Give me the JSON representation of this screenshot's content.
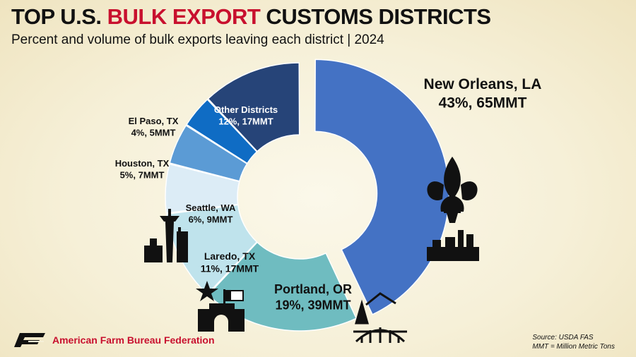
{
  "title": {
    "prefix": "TOP U.S. ",
    "highlight": "BULK EXPORT",
    "suffix": " CUSTOMS DISTRICTS"
  },
  "subtitle": "Percent and volume of bulk exports leaving each district | 2024",
  "source": {
    "line1": "Source: USDA FAS",
    "line2": "MMT = Million Metric Tons"
  },
  "brand": {
    "name": "American Farm Bureau Federation",
    "color": "#c8102e"
  },
  "colors": {
    "title_accent": "#c8102e"
  },
  "chart_data": {
    "type": "pie",
    "style": "donut",
    "slices": [
      {
        "name": "New Orleans, LA",
        "value_label": "43%, 65MMT",
        "percent": 43,
        "volume_mmt": 65,
        "color": "#4472c4",
        "exploded": true,
        "icon": "fleur-de-lis-skyline-icon"
      },
      {
        "name": "Portland, OR",
        "value_label": "19%, 39MMT",
        "percent": 19,
        "volume_mmt": 39,
        "color": "#6fbcc0",
        "exploded": false,
        "icon": "tree-bridge-icon"
      },
      {
        "name": "Laredo, TX",
        "value_label": "11%, 17MMT",
        "percent": 11,
        "volume_mmt": 17,
        "color": "#bfe3ec",
        "exploded": false,
        "icon": "texas-alamo-icon"
      },
      {
        "name": "Seattle, WA",
        "value_label": "6%, 9MMT",
        "percent": 6,
        "volume_mmt": 9,
        "color": "#dcecf6",
        "exploded": false,
        "icon": "space-needle-icon"
      },
      {
        "name": "Houston, TX",
        "value_label": "5%, 7MMT",
        "percent": 5,
        "volume_mmt": 7,
        "color": "#5b9bd5",
        "exploded": false,
        "icon": ""
      },
      {
        "name": "El Paso, TX",
        "value_label": "4%, 5MMT",
        "percent": 4,
        "volume_mmt": 5,
        "color": "#0f6cc4",
        "exploded": false,
        "icon": ""
      },
      {
        "name": "Other Districts",
        "value_label": "12%, 17MMT",
        "percent": 12,
        "volume_mmt": 17,
        "color": "#264478",
        "exploded": false,
        "icon": ""
      }
    ]
  }
}
